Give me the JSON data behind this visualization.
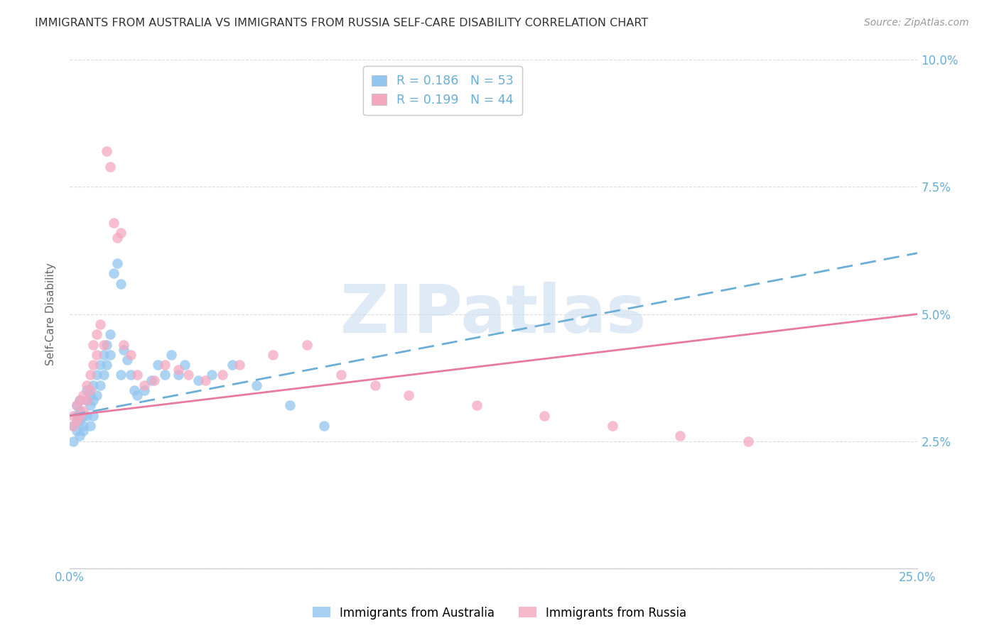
{
  "title": "IMMIGRANTS FROM AUSTRALIA VS IMMIGRANTS FROM RUSSIA SELF-CARE DISABILITY CORRELATION CHART",
  "source": "Source: ZipAtlas.com",
  "ylabel": "Self-Care Disability",
  "xlim": [
    0.0,
    0.25
  ],
  "ylim": [
    0.0,
    0.1
  ],
  "australia_R": 0.186,
  "australia_N": 53,
  "russia_R": 0.199,
  "russia_N": 44,
  "australia_color": "#92C5F0",
  "russia_color": "#F4A8C0",
  "australia_line_color": "#6BAED6",
  "russia_line_color": "#E87A9F",
  "tick_color": "#6BAED6",
  "background_color": "#FFFFFF",
  "grid_color": "#DDDDDD",
  "legend_label_australia": "Immigrants from Australia",
  "legend_label_russia": "Immigrants from Russia",
  "australia_x": [
    0.001,
    0.001,
    0.002,
    0.002,
    0.002,
    0.003,
    0.003,
    0.003,
    0.003,
    0.004,
    0.004,
    0.004,
    0.005,
    0.005,
    0.005,
    0.006,
    0.006,
    0.006,
    0.007,
    0.007,
    0.007,
    0.008,
    0.008,
    0.009,
    0.009,
    0.01,
    0.01,
    0.011,
    0.011,
    0.012,
    0.012,
    0.013,
    0.014,
    0.015,
    0.015,
    0.016,
    0.017,
    0.018,
    0.019,
    0.02,
    0.022,
    0.024,
    0.026,
    0.028,
    0.03,
    0.032,
    0.034,
    0.038,
    0.042,
    0.048,
    0.055,
    0.065,
    0.075
  ],
  "australia_y": [
    0.028,
    0.025,
    0.03,
    0.027,
    0.032,
    0.026,
    0.029,
    0.031,
    0.033,
    0.027,
    0.03,
    0.028,
    0.035,
    0.033,
    0.03,
    0.032,
    0.034,
    0.028,
    0.036,
    0.033,
    0.03,
    0.038,
    0.034,
    0.04,
    0.036,
    0.042,
    0.038,
    0.044,
    0.04,
    0.046,
    0.042,
    0.058,
    0.06,
    0.056,
    0.038,
    0.043,
    0.041,
    0.038,
    0.035,
    0.034,
    0.035,
    0.037,
    0.04,
    0.038,
    0.042,
    0.038,
    0.04,
    0.037,
    0.038,
    0.04,
    0.036,
    0.032,
    0.028
  ],
  "russia_x": [
    0.001,
    0.001,
    0.002,
    0.002,
    0.003,
    0.003,
    0.004,
    0.004,
    0.005,
    0.005,
    0.006,
    0.006,
    0.007,
    0.007,
    0.008,
    0.008,
    0.009,
    0.01,
    0.011,
    0.012,
    0.013,
    0.014,
    0.015,
    0.016,
    0.018,
    0.02,
    0.022,
    0.025,
    0.028,
    0.032,
    0.035,
    0.04,
    0.045,
    0.05,
    0.06,
    0.07,
    0.08,
    0.09,
    0.1,
    0.12,
    0.14,
    0.16,
    0.18,
    0.2
  ],
  "russia_y": [
    0.03,
    0.028,
    0.032,
    0.029,
    0.033,
    0.03,
    0.034,
    0.031,
    0.036,
    0.033,
    0.038,
    0.035,
    0.04,
    0.044,
    0.042,
    0.046,
    0.048,
    0.044,
    0.082,
    0.079,
    0.068,
    0.065,
    0.066,
    0.044,
    0.042,
    0.038,
    0.036,
    0.037,
    0.04,
    0.039,
    0.038,
    0.037,
    0.038,
    0.04,
    0.042,
    0.044,
    0.038,
    0.036,
    0.034,
    0.032,
    0.03,
    0.028,
    0.026,
    0.025
  ],
  "aus_line_x": [
    0.0,
    0.25
  ],
  "aus_line_y": [
    0.03,
    0.062
  ],
  "rus_line_x": [
    0.0,
    0.25
  ],
  "rus_line_y": [
    0.03,
    0.05
  ],
  "watermark_text": "ZIPatlas",
  "watermark_color": "#C8DCF0"
}
